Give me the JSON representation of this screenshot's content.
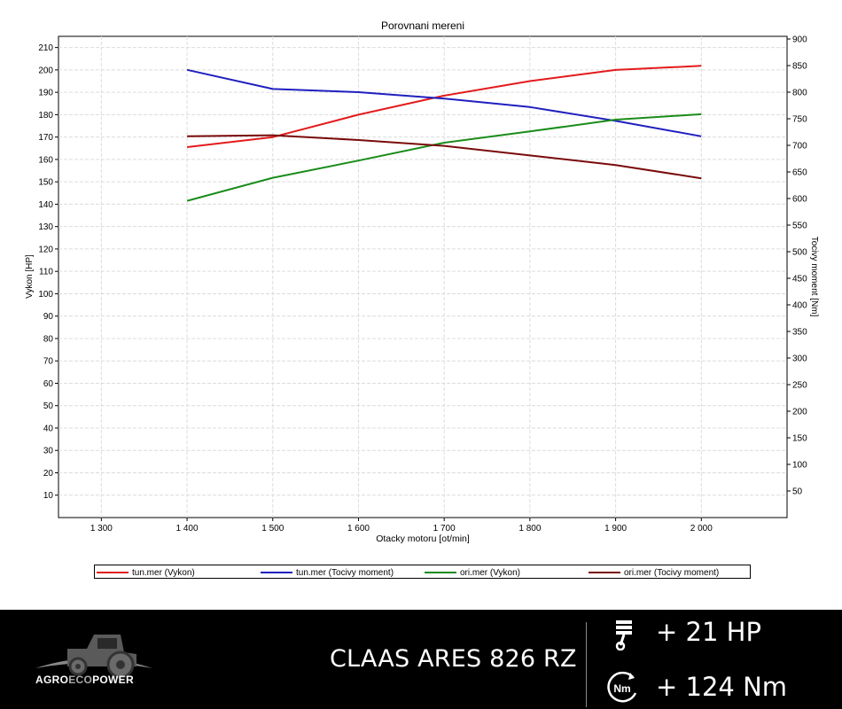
{
  "chart_data": {
    "type": "line",
    "title": "Porovnani mereni",
    "xlabel": "Otacky motoru [ot/min]",
    "ylabel_left": "Vykon [HP]",
    "ylabel_right": "Tocivy moment [Nm]",
    "xlim": [
      1250,
      2100
    ],
    "ylim_left": [
      0,
      215
    ],
    "ylim_right": [
      0,
      905
    ],
    "x_ticks": [
      1300,
      1400,
      1500,
      1600,
      1700,
      1800,
      1900,
      2000
    ],
    "x_tick_labels": [
      "1 300",
      "1 400",
      "1 500",
      "1 600",
      "1 700",
      "1 800",
      "1 900",
      "2 000"
    ],
    "y_left_ticks": [
      10,
      20,
      30,
      40,
      50,
      60,
      70,
      80,
      90,
      100,
      110,
      120,
      130,
      140,
      150,
      160,
      170,
      180,
      190,
      200,
      210
    ],
    "y_left_tick_labels": [
      "10",
      "20",
      "30",
      "40",
      "50",
      "60",
      "70",
      "80",
      "90",
      "100",
      "110",
      "120",
      "130",
      "140",
      "150",
      "160",
      "170",
      "180",
      "190",
      "200",
      "210"
    ],
    "y_right_ticks": [
      50,
      100,
      150,
      200,
      250,
      300,
      350,
      400,
      450,
      500,
      550,
      600,
      650,
      700,
      750,
      800,
      850,
      900
    ],
    "y_right_tick_labels": [
      "50",
      "100",
      "150",
      "200",
      "250",
      "300",
      "350",
      "400",
      "450",
      "500",
      "550",
      "600",
      "650",
      "700",
      "750",
      "800",
      "850",
      "900"
    ],
    "grid": true,
    "legend_position": "bottom",
    "series": [
      {
        "name": "tun.mer  (Vykon)",
        "axis": "left",
        "color": "#e31a1c",
        "x": [
          1400,
          1500,
          1600,
          1700,
          1800,
          1900,
          2000
        ],
        "y": [
          165.5,
          170,
          180,
          188.5,
          195,
          200,
          201.8
        ]
      },
      {
        "name": "tun.mer  (Tocivy moment)",
        "axis": "right",
        "color": "#1f1fbf",
        "x": [
          1400,
          1500,
          1600,
          1700,
          1800,
          1900,
          2000
        ],
        "y": [
          842,
          806,
          800,
          788,
          772,
          746,
          717
        ]
      },
      {
        "name": "ori.mer  (Vykon)",
        "axis": "left",
        "color": "#1a8c1a",
        "x": [
          1400,
          1500,
          1600,
          1700,
          1800,
          1900,
          2000
        ],
        "y": [
          141.5,
          151.8,
          159.5,
          167.5,
          172.5,
          177.8,
          180.2
        ]
      },
      {
        "name": "ori.mer  (Tocivy moment)",
        "axis": "right",
        "color": "#7a0a0a",
        "x": [
          1400,
          1500,
          1600,
          1700,
          1800,
          1900,
          2000
        ],
        "y": [
          717,
          719,
          710,
          699,
          681,
          663,
          638
        ]
      }
    ]
  },
  "footer": {
    "brand_parts": [
      "AGRO",
      "ECO",
      "POWER"
    ],
    "model": "CLAAS ARES 826 RZ",
    "hp_gain": "+ 21 HP",
    "nm_gain": "+ 124 Nm",
    "nm_icon_text": "Nm",
    "icons": [
      "tractor-logo",
      "piston-icon",
      "torque-icon"
    ]
  }
}
